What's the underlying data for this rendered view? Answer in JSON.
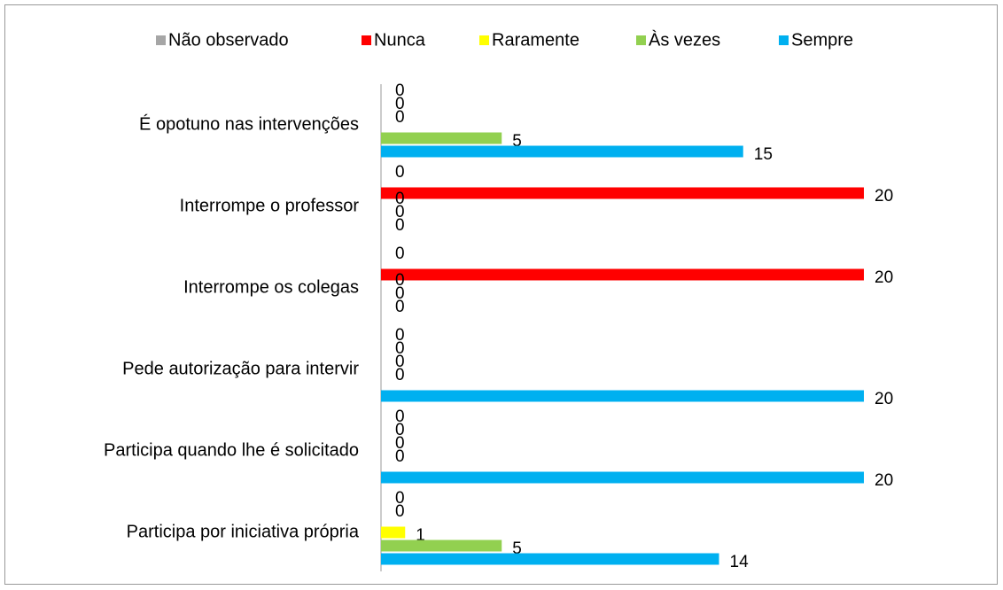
{
  "chart_data": {
    "type": "bar",
    "orientation": "horizontal",
    "categories": [
      "É opotuno nas intervenções",
      "Interrompe o professor",
      "Interrompe os colegas",
      "Pede autorização para intervir",
      "Participa quando lhe é solicitado",
      "Participa por iniciativa própria"
    ],
    "series": [
      {
        "name": "Não observado",
        "color": "#a6a6a6",
        "values": [
          0,
          0,
          0,
          0,
          0,
          0
        ]
      },
      {
        "name": "Nunca",
        "color": "#ff0000",
        "values": [
          0,
          20,
          20,
          0,
          0,
          0
        ]
      },
      {
        "name": "Raramente",
        "color": "#ffff00",
        "values": [
          0,
          0,
          0,
          0,
          0,
          1
        ]
      },
      {
        "name": "Às vezes",
        "color": "#92d050",
        "values": [
          5,
          0,
          0,
          0,
          0,
          5
        ]
      },
      {
        "name": "Sempre",
        "color": "#00b0f0",
        "values": [
          15,
          0,
          0,
          20,
          20,
          14
        ]
      }
    ],
    "legend": "top"
  }
}
